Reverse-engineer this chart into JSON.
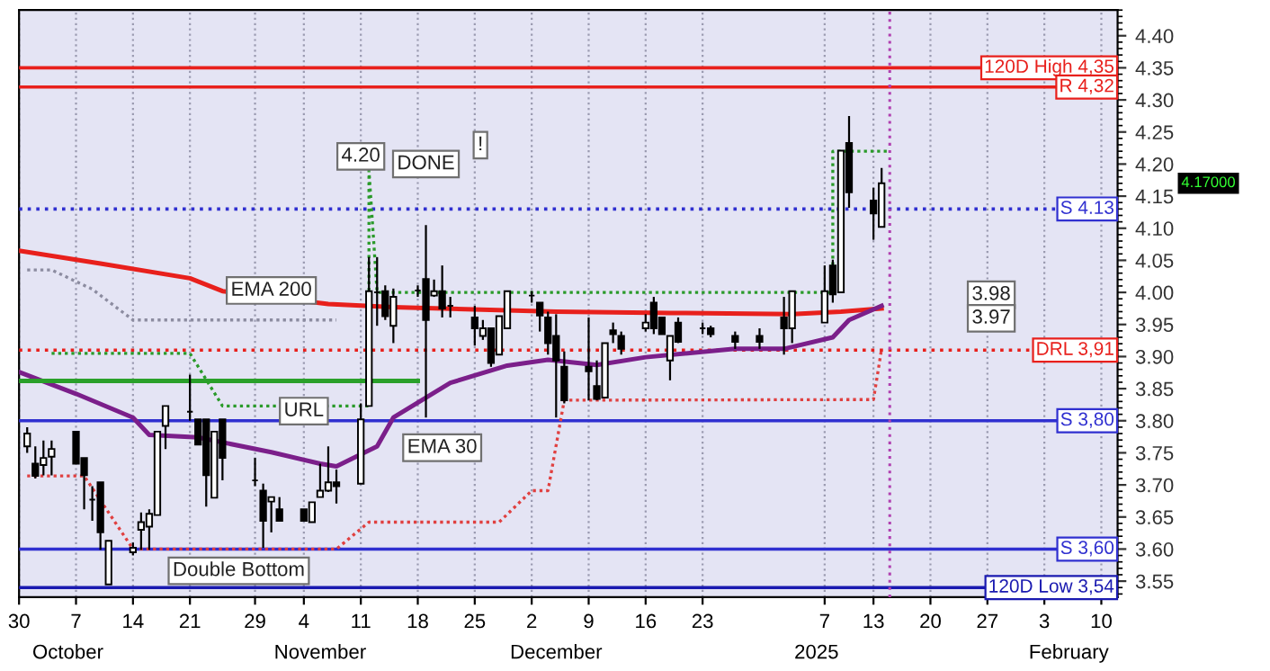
{
  "chart_data": {
    "type": "candlestick",
    "x": [
      "2024-10-01",
      "2024-10-02",
      "2024-10-03",
      "2024-10-04",
      "2024-10-07",
      "2024-10-08",
      "2024-10-09",
      "2024-10-10",
      "2024-10-11",
      "2024-10-14",
      "2024-10-15",
      "2024-10-16",
      "2024-10-17",
      "2024-10-18",
      "2024-10-21",
      "2024-10-22",
      "2024-10-23",
      "2024-10-24",
      "2024-10-25",
      "2024-10-29",
      "2024-10-30",
      "2024-10-31",
      "2024-11-01",
      "2024-11-04",
      "2024-11-05",
      "2024-11-06",
      "2024-11-07",
      "2024-11-08",
      "2024-11-11",
      "2024-11-12",
      "2024-11-13",
      "2024-11-14",
      "2024-11-15",
      "2024-11-18",
      "2024-11-19",
      "2024-11-20",
      "2024-11-21",
      "2024-11-22",
      "2024-11-25",
      "2024-11-26",
      "2024-11-27",
      "2024-11-28",
      "2024-11-29",
      "2024-12-02",
      "2024-12-03",
      "2024-12-04",
      "2024-12-05",
      "2024-12-06",
      "2024-12-09",
      "2024-12-10",
      "2024-12-11",
      "2024-12-12",
      "2024-12-13",
      "2024-12-16",
      "2024-12-17",
      "2024-12-18",
      "2024-12-19",
      "2024-12-20",
      "2024-12-23",
      "2024-12-24",
      "2024-12-27",
      "2024-12-30",
      "2025-01-02",
      "2025-01-03",
      "2025-01-07",
      "2025-01-08",
      "2025-01-09",
      "2025-01-10",
      "2025-01-13",
      "2025-01-14"
    ],
    "ohlc": [
      [
        3.76,
        3.79,
        3.75,
        3.78
      ],
      [
        3.733,
        3.76,
        3.71,
        3.714
      ],
      [
        3.731,
        3.769,
        3.715,
        3.742
      ],
      [
        3.744,
        3.769,
        3.715,
        3.756
      ],
      [
        3.783,
        3.783,
        3.733,
        3.733
      ],
      [
        3.742,
        3.742,
        3.662,
        3.715
      ],
      [
        3.677,
        3.698,
        3.644,
        3.677
      ],
      [
        3.704,
        3.704,
        3.599,
        3.626
      ],
      [
        3.545,
        3.613,
        3.545,
        3.613
      ],
      [
        3.595,
        3.61,
        3.59,
        3.602
      ],
      [
        3.63,
        3.657,
        3.599,
        3.642
      ],
      [
        3.635,
        3.662,
        3.599,
        3.655
      ],
      [
        3.653,
        3.783,
        3.653,
        3.783
      ],
      [
        3.792,
        3.823,
        3.756,
        3.823
      ],
      [
        3.814,
        3.872,
        3.8,
        3.814
      ],
      [
        3.802,
        3.802,
        3.763,
        3.763
      ],
      [
        3.802,
        3.802,
        3.666,
        3.715
      ],
      [
        3.68,
        3.783,
        3.68,
        3.783
      ],
      [
        3.802,
        3.802,
        3.707,
        3.742
      ],
      [
        3.707,
        3.742,
        3.698,
        3.707
      ],
      [
        3.691,
        3.702,
        3.602,
        3.644
      ],
      [
        3.674,
        3.681,
        3.626,
        3.681
      ],
      [
        3.662,
        3.681,
        3.644,
        3.644
      ],
      [
        3.662,
        3.662,
        3.644,
        3.644
      ],
      [
        3.642,
        3.673,
        3.642,
        3.673
      ],
      [
        3.681,
        3.733,
        3.681,
        3.691
      ],
      [
        3.691,
        3.76,
        3.689,
        3.704
      ],
      [
        3.704,
        3.724,
        3.671,
        3.698
      ],
      [
        3.702,
        3.827,
        3.702,
        3.802
      ],
      [
        3.823,
        4.055,
        3.823,
        4.002
      ],
      [
        4.0,
        4.055,
        3.948,
        4.0
      ],
      [
        4.002,
        4.011,
        3.957,
        3.963
      ],
      [
        3.948,
        4.006,
        3.921,
        3.993
      ],
      [
        4.003,
        4.011,
        3.993,
        4.003
      ],
      [
        4.021,
        4.105,
        3.805,
        3.957
      ],
      [
        3.995,
        4.02,
        3.993,
        4.002
      ],
      [
        4.002,
        4.042,
        3.961,
        3.975
      ],
      [
        3.979,
        3.993,
        3.961,
        3.979
      ],
      [
        3.961,
        3.979,
        3.917,
        3.944
      ],
      [
        3.932,
        3.957,
        3.926,
        3.944
      ],
      [
        3.944,
        3.944,
        3.884,
        3.89
      ],
      [
        3.903,
        3.963,
        3.903,
        3.963
      ],
      [
        3.944,
        4.002,
        3.944,
        4.002
      ],
      [
        3.995,
        4.002,
        3.984,
        3.995
      ],
      [
        3.984,
        3.984,
        3.939,
        3.964
      ],
      [
        3.961,
        3.97,
        3.903,
        3.921
      ],
      [
        3.932,
        3.966,
        3.805,
        3.894
      ],
      [
        3.884,
        3.908,
        3.827,
        3.832
      ],
      [
        3.884,
        3.961,
        3.832,
        3.877
      ],
      [
        3.854,
        3.894,
        3.832,
        3.834
      ],
      [
        3.836,
        3.921,
        3.836,
        3.921
      ],
      [
        3.941,
        3.953,
        3.921,
        3.935
      ],
      [
        3.932,
        3.939,
        3.903,
        3.912
      ],
      [
        3.944,
        3.966,
        3.939,
        3.953
      ],
      [
        3.984,
        3.993,
        3.935,
        3.944
      ],
      [
        3.961,
        3.961,
        3.935,
        3.935
      ],
      [
        3.894,
        3.932,
        3.863,
        3.932
      ],
      [
        3.953,
        3.961,
        3.921,
        3.923
      ],
      [
        3.944,
        3.953,
        3.935,
        3.944
      ],
      [
        3.944,
        3.948,
        3.93,
        3.935
      ],
      [
        3.932,
        3.939,
        3.912,
        3.923
      ],
      [
        3.932,
        3.944,
        3.912,
        3.923
      ],
      [
        3.961,
        3.993,
        3.903,
        3.944
      ],
      [
        3.944,
        4.002,
        3.921,
        4.002
      ],
      [
        3.953,
        4.042,
        3.953,
        4.002
      ],
      [
        4.042,
        4.051,
        3.984,
        3.997
      ],
      [
        4.0,
        4.221,
        4.0,
        4.221
      ],
      [
        4.233,
        4.275,
        4.132,
        4.156
      ],
      [
        4.143,
        4.163,
        4.082,
        4.123
      ],
      [
        4.102,
        4.194,
        4.102,
        4.17
      ]
    ],
    "series": [
      {
        "type": "line",
        "color": "#e8201c",
        "line_style": "solid",
        "x": [
          "2024-09-30",
          "2024-10-10",
          "2024-10-21",
          "2024-10-25",
          "2024-11-07",
          "2024-11-15",
          "2024-12-05",
          "2024-12-19",
          "2025-01-03",
          "2025-01-09",
          "2025-01-14"
        ],
        "values": [
          4.065,
          4.045,
          4.022,
          4.002,
          3.982,
          3.977,
          3.97,
          3.968,
          3.966,
          3.97,
          3.975
        ]
      },
      {
        "type": "line",
        "color": "#7b1f8a",
        "line_style": "solid",
        "x": [
          "2024-09-30",
          "2024-10-07",
          "2024-10-14",
          "2024-10-16",
          "2024-10-22",
          "2024-10-31",
          "2024-11-06",
          "2024-11-08",
          "2024-11-13",
          "2024-11-15",
          "2024-11-22",
          "2024-11-29",
          "2024-12-04",
          "2024-12-10",
          "2024-12-16",
          "2024-12-27",
          "2025-01-02",
          "2025-01-08",
          "2025-01-10",
          "2025-01-14"
        ],
        "values": [
          3.876,
          3.842,
          3.805,
          3.778,
          3.774,
          3.751,
          3.733,
          3.729,
          3.76,
          3.805,
          3.859,
          3.886,
          3.895,
          3.887,
          3.899,
          3.912,
          3.912,
          3.93,
          3.957,
          3.979
        ]
      },
      {
        "type": "line",
        "color": "#2a9a2a",
        "line_style": "dotted",
        "x": [
          "2024-10-04",
          "2024-10-21",
          "2024-10-25",
          "2024-11-12",
          "2024-11-12",
          "2024-11-13",
          "2025-01-08",
          "2025-01-08",
          "2025-01-15"
        ],
        "values": [
          3.905,
          3.905,
          3.823,
          3.823,
          4.19,
          4.0,
          4.0,
          4.22,
          4.22
        ]
      },
      {
        "type": "line",
        "color": "#e04040",
        "line_style": "dotted",
        "x": [
          "2024-10-01",
          "2024-10-08",
          "2024-10-14",
          "2024-11-08",
          "2024-11-12",
          "2024-11-28",
          "2024-12-02",
          "2024-12-04",
          "2024-12-06",
          "2025-01-13",
          "2025-01-14"
        ],
        "values": [
          3.714,
          3.714,
          3.6,
          3.6,
          3.642,
          3.642,
          3.691,
          3.691,
          3.832,
          3.833,
          3.912
        ]
      },
      {
        "type": "line",
        "color": "#8c8ca0",
        "line_style": "dotted",
        "x": [
          "2024-10-01",
          "2024-10-04",
          "2024-10-09",
          "2024-10-14",
          "2024-11-08"
        ],
        "values": [
          4.035,
          4.035,
          4.005,
          3.957,
          3.957
        ]
      },
      {
        "type": "line",
        "color": "#2aa02a",
        "line_style": "solid",
        "x": [
          "2024-09-30",
          "2024-11-18"
        ],
        "values": [
          3.862,
          3.862
        ]
      }
    ],
    "ref_lines": [
      {
        "axis": "y",
        "value": 4.35,
        "label": "120D High 4,35",
        "color": "#e8201c",
        "line_style": "solid"
      },
      {
        "axis": "y",
        "value": 4.32,
        "label": "R 4,32",
        "color": "#e8201c",
        "line_style": "solid"
      },
      {
        "axis": "y",
        "value": 4.13,
        "label": "S 4.13",
        "color": "#3030d0",
        "line_style": "dotted"
      },
      {
        "axis": "y",
        "value": 3.91,
        "label": "DRL 3,91",
        "color": "#e8201c",
        "line_style": "dotted"
      },
      {
        "axis": "y",
        "value": 3.8,
        "label": "S 3,80",
        "color": "#3030d0",
        "line_style": "solid"
      },
      {
        "axis": "y",
        "value": 3.6,
        "label": "S 3,60",
        "color": "#3030d0",
        "line_style": "solid"
      },
      {
        "axis": "y",
        "value": 3.54,
        "label": "120D Low 3,54",
        "color": "#1a1ab0",
        "line_style": "solid"
      },
      {
        "axis": "x",
        "value": "2025-01-15",
        "color": "#b040b0",
        "line_style": "dotted"
      }
    ],
    "annotations": [
      {
        "text": "4.20",
        "x": "2024-11-11",
        "y": 4.212
      },
      {
        "text": "DONE",
        "x": "2024-11-19",
        "y": 4.2
      },
      "!",
      {
        "text": "EMA 200",
        "x": "2024-10-31",
        "y": 4.003
      },
      {
        "text": "EMA 30",
        "x": "2024-11-21",
        "y": 3.758
      },
      {
        "text": "URL",
        "x": "2024-11-04",
        "y": 3.815
      },
      "Double Bottom",
      "3.98",
      "3.97",
      "4.17000"
    ],
    "x2lim": [
      "2024-09-30",
      "2025-02-12"
    ],
    "x2ticks": [
      {
        "value": "2024-10-06",
        "label": "October"
      },
      {
        "value": "2024-11-06",
        "label": "November"
      },
      {
        "value": "2024-12-05",
        "label": "December"
      },
      {
        "value": "2025-01-06",
        "label": "2025"
      },
      {
        "value": "2025-02-06",
        "label": "February"
      }
    ],
    "xlim": [
      "2024-09-30",
      "2025-02-12"
    ],
    "xticks": [
      {
        "value": "2024-09-30",
        "label": "30"
      },
      {
        "value": "2024-10-07",
        "label": "7"
      },
      {
        "value": "2024-10-14",
        "label": "14"
      },
      {
        "value": "2024-10-21",
        "label": "21"
      },
      {
        "value": "2024-10-29",
        "label": "29"
      },
      {
        "value": "2024-11-04",
        "label": "4"
      },
      {
        "value": "2024-11-11",
        "label": "11"
      },
      {
        "value": "2024-11-18",
        "label": "18"
      },
      {
        "value": "2024-11-25",
        "label": "25"
      },
      {
        "value": "2024-12-02",
        "label": "2"
      },
      {
        "value": "2024-12-09",
        "label": "9"
      },
      {
        "value": "2024-12-16",
        "label": "16"
      },
      {
        "value": "2024-12-23",
        "label": "23"
      },
      {
        "value": "2025-01-07",
        "label": "7"
      },
      {
        "value": "2025-01-13",
        "label": "13"
      },
      {
        "value": "2025-01-20",
        "label": "20"
      },
      {
        "value": "2025-01-27",
        "label": "27"
      },
      {
        "value": "2025-02-03",
        "label": "3"
      },
      {
        "value": "2025-02-10",
        "label": "10"
      }
    ],
    "ylim": [
      3.525,
      4.44
    ],
    "yticks": [
      {
        "value": 3.55,
        "label": "3.55"
      },
      {
        "value": 3.6,
        "label": "3.60"
      },
      {
        "value": 3.65,
        "label": "3.65"
      },
      {
        "value": 3.7,
        "label": "3.70"
      },
      {
        "value": 3.75,
        "label": "3.75"
      },
      {
        "value": 3.8,
        "label": "3.80"
      },
      {
        "value": 3.85,
        "label": "3.85"
      },
      {
        "value": 3.9,
        "label": "3.90"
      },
      {
        "value": 3.95,
        "label": "3.95"
      },
      {
        "value": 4.0,
        "label": "4.00"
      },
      {
        "value": 4.05,
        "label": "4.05"
      },
      {
        "value": 4.1,
        "label": "4.10"
      },
      {
        "value": 4.15,
        "label": "4.15"
      },
      {
        "value": 4.2,
        "label": "4.20"
      },
      {
        "value": 4.25,
        "label": "4.25"
      },
      {
        "value": 4.3,
        "label": "4.30"
      },
      {
        "value": 4.35,
        "label": "4.35"
      },
      {
        "value": 4.4,
        "label": "4.40"
      }
    ],
    "grid": "x"
  }
}
